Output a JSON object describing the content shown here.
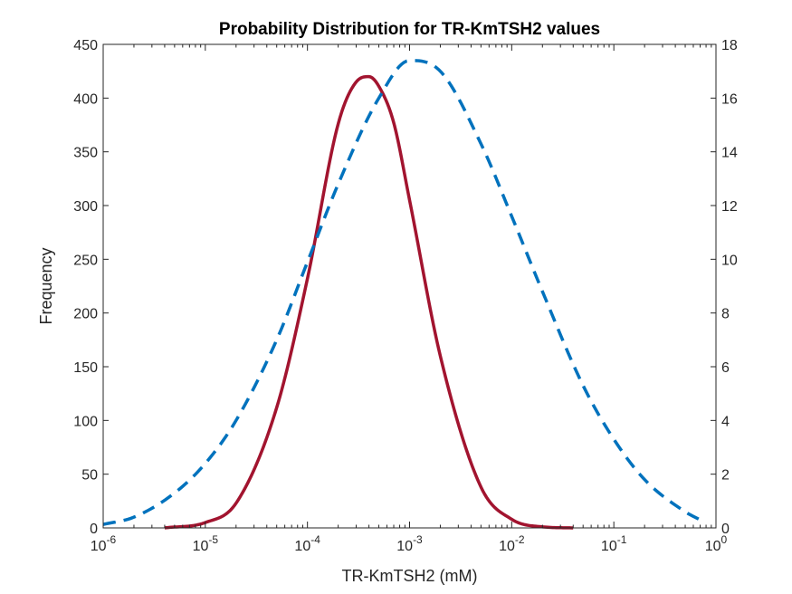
{
  "chart_data": {
    "type": "line",
    "title": "Probability Distribution for TR-KmTSH2 values",
    "xlabel": "TR-KmTSH2 (mM)",
    "ylabel": "Frequency",
    "xscale": "log",
    "xlim": [
      1e-06,
      1
    ],
    "ylim_left": [
      0,
      450
    ],
    "ylim_right": [
      0,
      18
    ],
    "grid": false,
    "legend": "none",
    "x_ticks": [
      {
        "value": 1e-06,
        "base": "10",
        "exp": "-6"
      },
      {
        "value": 1e-05,
        "base": "10",
        "exp": "-5"
      },
      {
        "value": 0.0001,
        "base": "10",
        "exp": "-4"
      },
      {
        "value": 0.001,
        "base": "10",
        "exp": "-3"
      },
      {
        "value": 0.01,
        "base": "10",
        "exp": "-2"
      },
      {
        "value": 0.1,
        "base": "10",
        "exp": "-1"
      },
      {
        "value": 1,
        "base": "10",
        "exp": "0"
      }
    ],
    "y_ticks_left": [
      "0",
      "50",
      "100",
      "150",
      "200",
      "250",
      "300",
      "350",
      "400",
      "450"
    ],
    "y_ticks_right": [
      "0",
      "2",
      "4",
      "6",
      "8",
      "10",
      "12",
      "14",
      "16",
      "18"
    ],
    "series": [
      {
        "axis": "left",
        "color": "#A2142F",
        "style": "solid",
        "x": [
          4e-06,
          1e-05,
          2e-05,
          5e-05,
          0.0001,
          0.0002,
          0.0003,
          0.0004,
          0.0005,
          0.0007,
          0.001,
          0.002,
          0.005,
          0.01,
          0.02,
          0.04
        ],
        "y": [
          0,
          5,
          23,
          112,
          232,
          376,
          415,
          420,
          411,
          377,
          305,
          160,
          38,
          8,
          1,
          0
        ]
      },
      {
        "axis": "right",
        "color": "#0072BD",
        "style": "dashed",
        "x": [
          1e-06,
          2e-06,
          5e-06,
          1e-05,
          2e-05,
          5e-05,
          0.0001,
          0.0002,
          0.0005,
          0.001,
          0.002,
          0.005,
          0.01,
          0.02,
          0.05,
          0.1,
          0.2,
          0.5,
          0.7
        ],
        "y": [
          0.13,
          0.4,
          1.3,
          2.4,
          4.0,
          7.0,
          9.9,
          12.8,
          16.0,
          17.4,
          17.0,
          14.3,
          11.6,
          8.8,
          5.3,
          3.3,
          1.8,
          0.6,
          0.3
        ]
      }
    ]
  }
}
